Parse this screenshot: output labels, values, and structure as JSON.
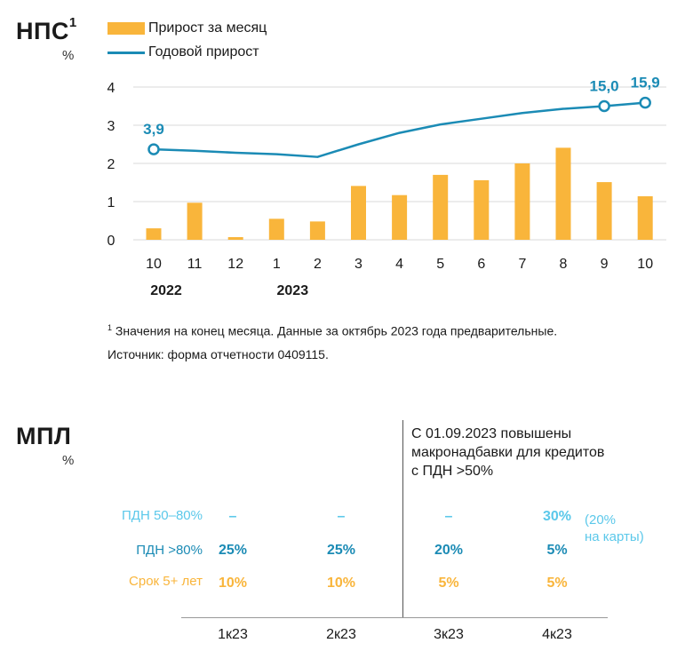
{
  "nps": {
    "title": "НПС",
    "title_sup": "1",
    "unit": "%",
    "legend": {
      "bar": "Прирост за месяц",
      "line": "Годовой прирост"
    },
    "footnote_sup": "1",
    "footnote": "Значения на конец месяца. Данные за октябрь 2023 года предварительные.",
    "source": "Источник: форма отчетности 0409115."
  },
  "chart_data": {
    "type": "bar",
    "title": "НПС",
    "ylabel": "%",
    "categories": [
      "10",
      "11",
      "12",
      "1",
      "2",
      "3",
      "4",
      "5",
      "6",
      "7",
      "8",
      "9",
      "10"
    ],
    "years": [
      "2022",
      "2023"
    ],
    "yticks": [
      "0",
      "1",
      "2",
      "3",
      "4"
    ],
    "ylim": [
      0,
      4
    ],
    "series": [
      {
        "name": "Прирост за месяц",
        "type": "bar",
        "color": "#f9b53b",
        "values": [
          0.3,
          0.97,
          0.07,
          0.55,
          0.48,
          1.41,
          1.17,
          1.7,
          1.56,
          2.0,
          2.41,
          1.51,
          1.14
        ]
      },
      {
        "name": "Годовой прирост",
        "type": "line",
        "color": "#1b8bb5",
        "values": [
          2.37,
          2.33,
          2.28,
          2.24,
          2.17,
          2.5,
          2.8,
          3.02,
          3.17,
          3.32,
          3.43,
          3.5,
          3.59
        ]
      }
    ],
    "annotations": [
      {
        "index": 0,
        "label": "3,9"
      },
      {
        "index": 11,
        "label": "15,0"
      },
      {
        "index": 12,
        "label": "15,9"
      }
    ]
  },
  "mpl": {
    "title": "МПЛ",
    "unit": "%",
    "note": [
      "С 01.09.2023 повышены",
      "макронадбавки для кредитов",
      "с ПДН >50%"
    ],
    "rows": [
      {
        "label": "ПДН 50–80%",
        "color": "#5bc8ea",
        "values": [
          "–",
          "–",
          "–",
          "30%"
        ]
      },
      {
        "label": "ПДН >80%",
        "color": "#1b8bb5",
        "values": [
          "25%",
          "25%",
          "20%",
          "5%"
        ]
      },
      {
        "label": "Срок 5+ лет",
        "color": "#f9b53b",
        "values": [
          "10%",
          "10%",
          "5%",
          "5%"
        ]
      }
    ],
    "extra_note": [
      "(20%",
      "на карты)"
    ],
    "quarters": [
      "1к23",
      "2к23",
      "3к23",
      "4к23"
    ]
  }
}
